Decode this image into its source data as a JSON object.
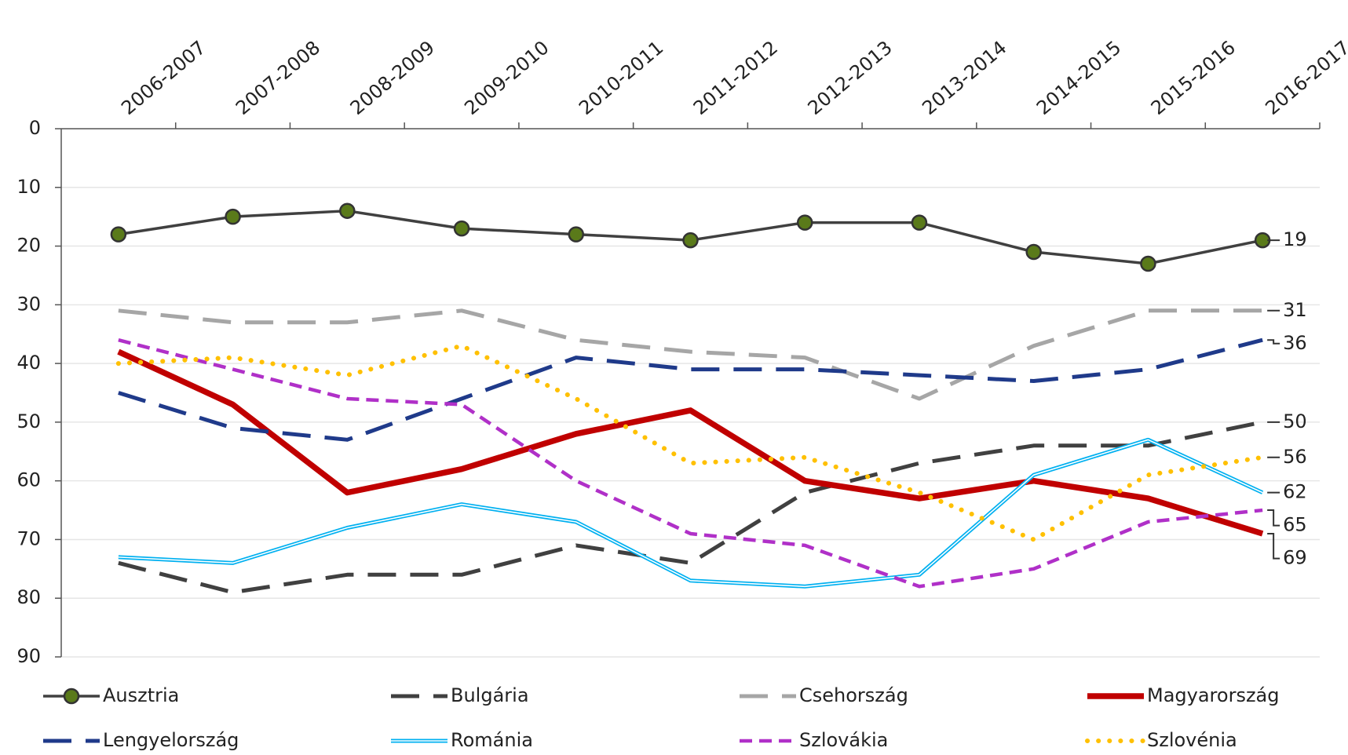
{
  "chart_data": {
    "type": "line",
    "categories": [
      "2006-2007",
      "2007-2008",
      "2008-2009",
      "2009-2010",
      "2010-2011",
      "2011-2012",
      "2012-2013",
      "2013-2014",
      "2014-2015",
      "2015-2016",
      "2016-2017"
    ],
    "ylim": [
      0,
      90
    ],
    "yticks": [
      0,
      10,
      20,
      30,
      40,
      50,
      60,
      70,
      80,
      90
    ],
    "y_reversed": true,
    "grid": true,
    "series": [
      {
        "name": "Ausztria",
        "color": "#404040",
        "style": "marker",
        "marker_color": "#5a7a1a",
        "values": [
          18,
          15,
          14,
          17,
          18,
          19,
          16,
          16,
          21,
          23,
          19
        ]
      },
      {
        "name": "Bulgária",
        "color": "#404040",
        "style": "dash",
        "values": [
          74,
          79,
          76,
          76,
          71,
          74,
          62,
          57,
          54,
          54,
          50
        ]
      },
      {
        "name": "Csehország",
        "color": "#a6a6a6",
        "style": "dash",
        "values": [
          31,
          33,
          33,
          31,
          36,
          38,
          39,
          46,
          37,
          31,
          31
        ]
      },
      {
        "name": "Magyarország",
        "color": "#c00000",
        "style": "thick",
        "values": [
          38,
          47,
          62,
          58,
          52,
          48,
          60,
          63,
          60,
          63,
          69
        ]
      },
      {
        "name": "Lengyelország",
        "color": "#1f3a8a",
        "style": "dash",
        "values": [
          45,
          51,
          53,
          46,
          39,
          41,
          41,
          42,
          43,
          41,
          36
        ]
      },
      {
        "name": "Románia",
        "color": "#00b0f0",
        "style": "double",
        "values": [
          73,
          74,
          68,
          64,
          67,
          77,
          78,
          76,
          59,
          53,
          62
        ]
      },
      {
        "name": "Szlovákia",
        "color": "#b030c8",
        "style": "shortdash",
        "values": [
          36,
          41,
          46,
          47,
          60,
          69,
          71,
          78,
          75,
          67,
          65
        ]
      },
      {
        "name": "Szlovénia",
        "color": "#ffc000",
        "style": "dot",
        "values": [
          40,
          39,
          42,
          37,
          46,
          57,
          56,
          62,
          70,
          59,
          56
        ]
      }
    ]
  }
}
